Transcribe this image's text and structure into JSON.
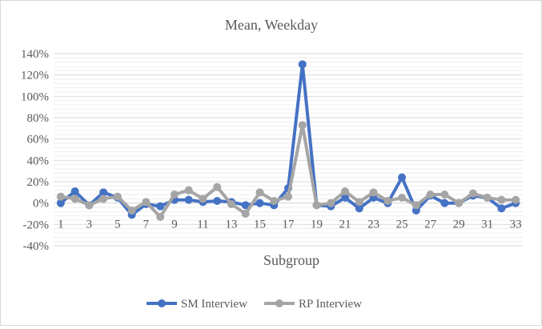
{
  "chart_data": {
    "type": "line",
    "title": "Mean, Weekday",
    "xlabel": "Subgroup",
    "ylabel": "",
    "ylim": [
      -0.4,
      1.4
    ],
    "y_ticks": [
      -0.4,
      -0.2,
      0,
      0.2,
      0.4,
      0.6,
      0.8,
      1.0,
      1.2,
      1.4
    ],
    "y_tick_labels": [
      "-40%",
      "-20%",
      "0%",
      "20%",
      "40%",
      "60%",
      "80%",
      "100%",
      "120%",
      "140%"
    ],
    "x": [
      1,
      2,
      3,
      4,
      5,
      6,
      7,
      8,
      9,
      10,
      11,
      12,
      13,
      14,
      15,
      16,
      17,
      18,
      19,
      20,
      21,
      22,
      23,
      24,
      25,
      26,
      27,
      28,
      29,
      30,
      31,
      32,
      33
    ],
    "x_tick_labels": [
      "1",
      "3",
      "5",
      "7",
      "9",
      "11",
      "13",
      "15",
      "17",
      "19",
      "21",
      "23",
      "25",
      "27",
      "29",
      "31",
      "33"
    ],
    "grid": true,
    "legend_position": "bottom",
    "series": [
      {
        "name": "SM Interview",
        "color": "#4472C4",
        "values": [
          0.0,
          0.11,
          -0.02,
          0.1,
          0.05,
          -0.11,
          -0.01,
          -0.03,
          0.03,
          0.03,
          0.01,
          0.02,
          0.01,
          -0.02,
          0.0,
          -0.02,
          0.14,
          1.3,
          -0.02,
          -0.03,
          0.05,
          -0.05,
          0.05,
          0.0,
          0.24,
          -0.07,
          0.07,
          0.0,
          0.0,
          0.07,
          0.05,
          -0.05,
          0.0
        ]
      },
      {
        "name": "RP Interview",
        "color": "#A5A5A5",
        "values": [
          0.06,
          0.04,
          -0.02,
          0.04,
          0.06,
          -0.07,
          0.01,
          -0.13,
          0.08,
          0.12,
          0.04,
          0.15,
          -0.01,
          -0.1,
          0.1,
          0.02,
          0.06,
          0.73,
          -0.02,
          0.0,
          0.11,
          0.01,
          0.1,
          0.02,
          0.05,
          -0.02,
          0.08,
          0.08,
          0.0,
          0.09,
          0.05,
          0.03,
          0.03
        ]
      }
    ]
  }
}
